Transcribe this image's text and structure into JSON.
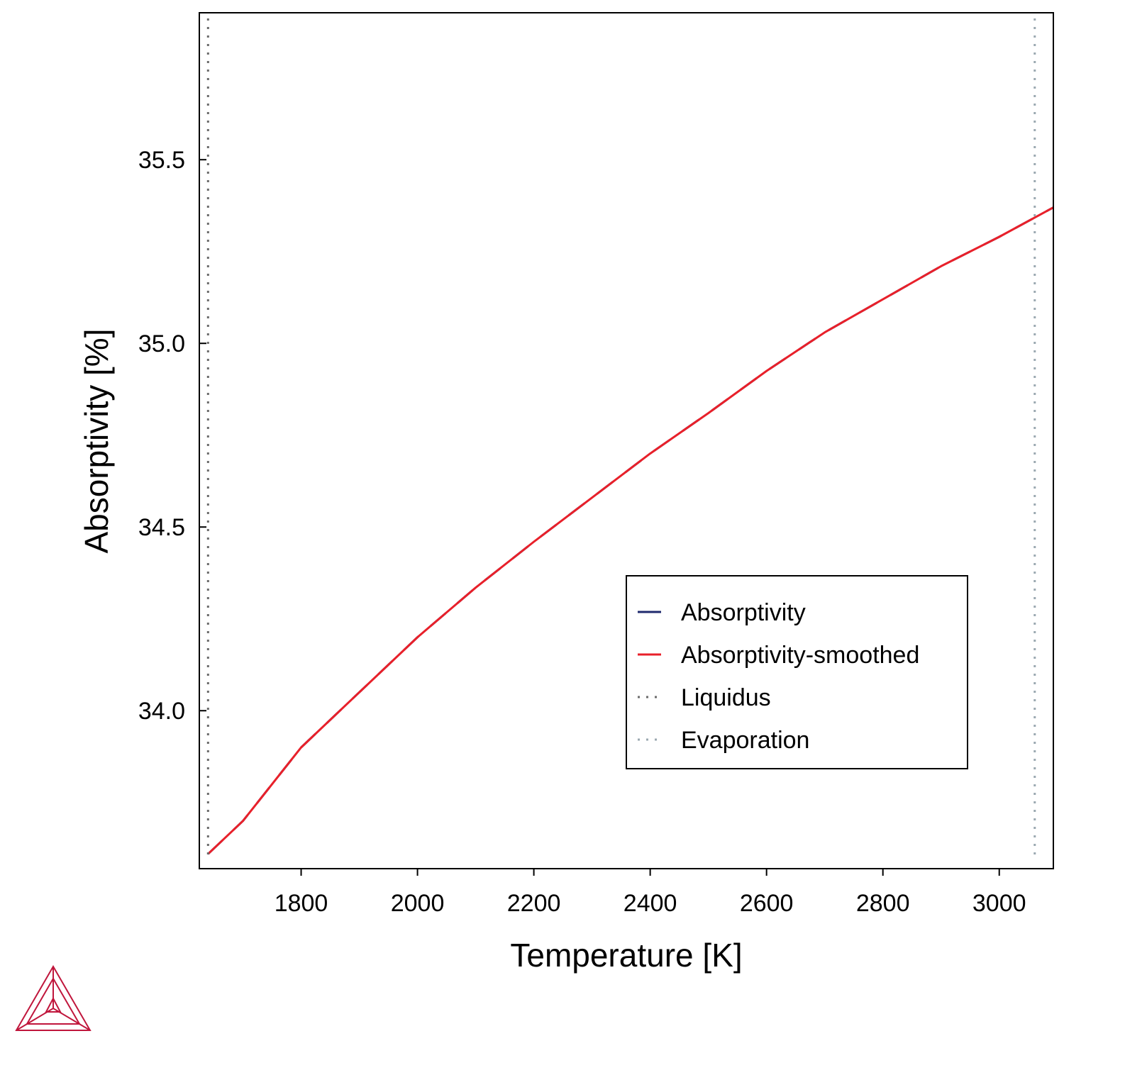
{
  "chart_data": {
    "type": "line",
    "title": "",
    "xlabel": "Temperature [K]",
    "ylabel": "Absorptivity [%]",
    "xlim": [
      1625,
      3093
    ],
    "ylim": [
      33.57,
      35.9
    ],
    "xticks": [
      "1800",
      "2000",
      "2200",
      "2400",
      "2600",
      "2800",
      "3000"
    ],
    "yticks": [
      "34.0",
      "34.5",
      "35.0",
      "35.5"
    ],
    "grid": false,
    "legend_position": "lower-right",
    "series": [
      {
        "name": "Absorptivity",
        "color": "#1f2a6e",
        "style": "dashed",
        "x": [
          1640,
          1700,
          1800,
          1900,
          2000,
          2100,
          2200,
          2300,
          2400,
          2500,
          2600,
          2700,
          2800,
          2900,
          3000,
          3093
        ],
        "y": [
          33.61,
          33.7,
          33.9,
          34.05,
          34.2,
          34.335,
          34.46,
          34.58,
          34.7,
          34.81,
          34.925,
          35.03,
          35.12,
          35.21,
          35.29,
          35.37
        ]
      },
      {
        "name": "Absorptivity-smoothed",
        "color": "#e8202a",
        "style": "solid",
        "x": [
          1640,
          1700,
          1800,
          1900,
          2000,
          2100,
          2200,
          2300,
          2400,
          2500,
          2600,
          2700,
          2800,
          2900,
          3000,
          3093
        ],
        "y": [
          33.61,
          33.7,
          33.9,
          34.05,
          34.2,
          34.335,
          34.46,
          34.58,
          34.7,
          34.81,
          34.925,
          35.03,
          35.12,
          35.21,
          35.29,
          35.37
        ]
      },
      {
        "name": "Liquidus",
        "color": "#6b6b6b",
        "style": "dotted",
        "type": "vline",
        "x": 1640
      },
      {
        "name": "Evaporation",
        "color": "#9aa8b0",
        "style": "dotted",
        "type": "vline",
        "x": 3061
      }
    ]
  },
  "logo": {
    "name": "triangle-logo-icon",
    "color": "#c0163c"
  }
}
